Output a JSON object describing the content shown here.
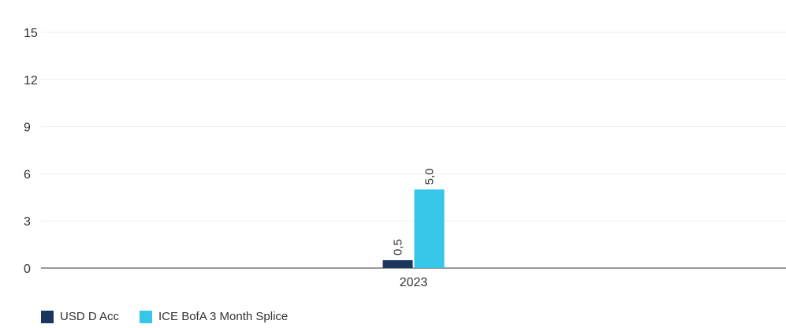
{
  "chart_data": {
    "type": "bar",
    "categories": [
      "2023"
    ],
    "series": [
      {
        "name": "USD D Acc",
        "values": [
          0.5
        ],
        "color": "#1b355e",
        "labels": [
          "0,5"
        ]
      },
      {
        "name": "ICE BofA 3 Month Splice",
        "values": [
          5.0
        ],
        "color": "#35c6e8",
        "labels": [
          "5,0"
        ]
      }
    ],
    "ylim": [
      0,
      15
    ],
    "yticks": [
      0,
      3,
      6,
      9,
      12,
      15
    ],
    "ytick_labels": [
      "0",
      "3",
      "6",
      "9",
      "12",
      "15"
    ],
    "grid": true,
    "legend_position": "bottom-left",
    "title": "",
    "xlabel": "",
    "ylabel": ""
  }
}
